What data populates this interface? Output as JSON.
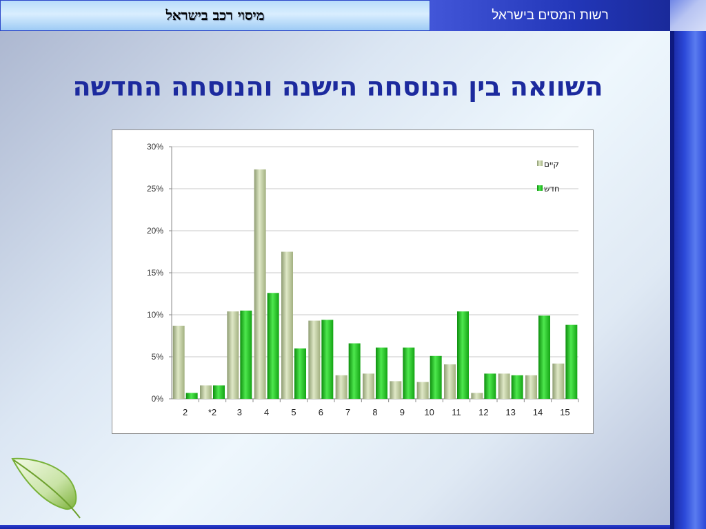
{
  "header": {
    "left_title": "מיסוי רכב בישראל",
    "right_title": "רשות המסים בישראל"
  },
  "slide_title": "השוואה בין הנוסחה הישנה והנוסחה החדשה",
  "colors": {
    "series_existing": "#b9c79a",
    "series_new": "#1ec41e",
    "title": "#1c2a9e",
    "header_dark": "#2236b8"
  },
  "icons": {
    "leaf": "leaf-icon"
  },
  "chart_data": {
    "type": "bar",
    "title": "",
    "xlabel": "",
    "ylabel": "",
    "categories": [
      "2",
      "*2",
      "3",
      "4",
      "5",
      "6",
      "7",
      "8",
      "9",
      "10",
      "11",
      "12",
      "13",
      "14",
      "15"
    ],
    "series": [
      {
        "name": "קיים",
        "color": "#b9c79a",
        "values": [
          8.7,
          1.6,
          10.4,
          27.3,
          17.5,
          9.3,
          2.8,
          3.0,
          2.1,
          2.0,
          4.1,
          0.7,
          3.0,
          2.8,
          4.2
        ]
      },
      {
        "name": "חדש",
        "color": "#1ec41e",
        "values": [
          0.7,
          1.6,
          10.5,
          12.6,
          6.0,
          9.4,
          6.6,
          6.1,
          6.1,
          5.1,
          10.4,
          3.0,
          2.8,
          9.9,
          8.8
        ]
      }
    ],
    "ylim": [
      0,
      30
    ],
    "yticks": [
      "0%",
      "5%",
      "10%",
      "15%",
      "20%",
      "25%",
      "30%"
    ],
    "ytick_values": [
      0,
      5,
      10,
      15,
      20,
      25,
      30
    ],
    "grid": true,
    "legend_position": "top-right"
  }
}
